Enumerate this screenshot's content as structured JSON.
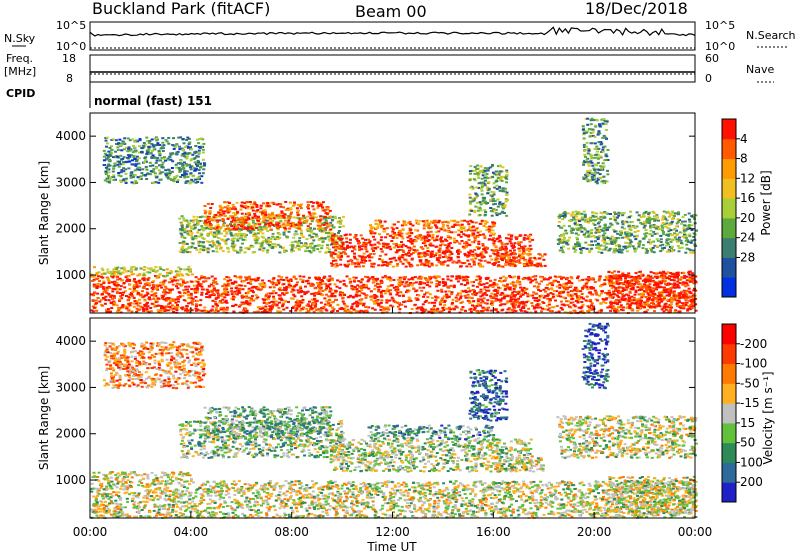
{
  "header": {
    "station": "Buckland Park (fitACF)",
    "beam": "Beam 00",
    "date": "18/Dec/2018"
  },
  "params": {
    "nsky_label": "N.Sky",
    "nsky_top": "10^5",
    "nsky_bottom": "10^0",
    "nsearch_label": "N.Search",
    "nsearch_top": "10^5",
    "nsearch_bottom": "10^0",
    "freq_label": "Freq.",
    "freq_unit": "[MHz]",
    "freq_top": "18",
    "freq_bottom": "8",
    "nave_label": "Nave",
    "nave_top": "60",
    "nave_bottom": "0",
    "cpid_label": "CPID",
    "cpid_value": "normal (fast) 151"
  },
  "chart_data": [
    {
      "type": "heatmap",
      "name": "power",
      "ylabel": "Slant Range [km]",
      "yticks": [
        1000,
        2000,
        3000,
        4000
      ],
      "ylim": [
        180,
        4500
      ],
      "colorbar": {
        "label": "Power [dB]",
        "ticks": [
          "4",
          "8",
          "12",
          "16",
          "20",
          "24",
          "28"
        ],
        "colors": [
          "#0030e0",
          "#2050a0",
          "#3c7f70",
          "#5caa3c",
          "#a8cf3a",
          "#f0c020",
          "#ff9a00",
          "#ff5a00",
          "#ff1000"
        ],
        "range": [
          0,
          31
        ]
      },
      "regions": [
        {
          "t": [
            0,
            24
          ],
          "r": [
            200,
            1000
          ],
          "level": 0.92
        },
        {
          "t": [
            0,
            4
          ],
          "r": [
            1000,
            1200
          ],
          "level": 0.55
        },
        {
          "t": [
            3.5,
            10
          ],
          "r": [
            1500,
            2300
          ],
          "level": 0.45
        },
        {
          "t": [
            4.5,
            9.5
          ],
          "r": [
            2000,
            2600
          ],
          "level": 0.85
        },
        {
          "t": [
            9.5,
            17.5
          ],
          "r": [
            1200,
            1900
          ],
          "level": 0.95
        },
        {
          "t": [
            11,
            16
          ],
          "r": [
            1900,
            2200
          ],
          "level": 0.8
        },
        {
          "t": [
            16,
            18
          ],
          "r": [
            1200,
            1500
          ],
          "level": 0.9
        },
        {
          "t": [
            18.5,
            24
          ],
          "r": [
            1500,
            2400
          ],
          "level": 0.4
        },
        {
          "t": [
            20.5,
            24
          ],
          "r": [
            300,
            1100
          ],
          "level": 0.95
        },
        {
          "t": [
            0.5,
            4.5
          ],
          "r": [
            3000,
            4000
          ],
          "level": 0.3
        },
        {
          "t": [
            15,
            16.5
          ],
          "r": [
            2300,
            3400
          ],
          "level": 0.4
        },
        {
          "t": [
            19.5,
            20.5
          ],
          "r": [
            3000,
            4400
          ],
          "level": 0.35
        }
      ]
    },
    {
      "type": "heatmap",
      "name": "velocity",
      "xlabel": "Time UT",
      "ylabel": "Slant Range [km]",
      "xticks": [
        "00:00",
        "04:00",
        "08:00",
        "12:00",
        "16:00",
        "20:00",
        "00:00"
      ],
      "xlim": [
        0,
        24
      ],
      "yticks": [
        1000,
        2000,
        3000,
        4000
      ],
      "ylim": [
        180,
        4500
      ],
      "colorbar": {
        "label": "Velocity [m s⁻¹]",
        "ticks": [
          "200",
          "100",
          "50",
          "15",
          "-15",
          "-50",
          "-100",
          "-200"
        ],
        "colors": [
          "#2020c8",
          "#2d6b9a",
          "#2e8b57",
          "#63c03a",
          "#c0c0c0",
          "#ffb020",
          "#ff7a00",
          "#ff3a00",
          "#ff0000"
        ],
        "range": [
          -250,
          250
        ]
      },
      "regions": [
        {
          "t": [
            0,
            24
          ],
          "r": [
            200,
            1000
          ],
          "level": 0.5
        },
        {
          "t": [
            0,
            4
          ],
          "r": [
            1000,
            1200
          ],
          "level": 0.55
        },
        {
          "t": [
            3.5,
            10
          ],
          "r": [
            1500,
            2300
          ],
          "level": 0.4
        },
        {
          "t": [
            4.5,
            9.5
          ],
          "r": [
            2000,
            2600
          ],
          "level": 0.35
        },
        {
          "t": [
            9.5,
            17.5
          ],
          "r": [
            1200,
            1900
          ],
          "level": 0.45
        },
        {
          "t": [
            11,
            16
          ],
          "r": [
            1900,
            2200
          ],
          "level": 0.3
        },
        {
          "t": [
            16,
            18
          ],
          "r": [
            1200,
            1500
          ],
          "level": 0.5
        },
        {
          "t": [
            18.5,
            24
          ],
          "r": [
            1500,
            2400
          ],
          "level": 0.5
        },
        {
          "t": [
            20.5,
            24
          ],
          "r": [
            300,
            1100
          ],
          "level": 0.5
        },
        {
          "t": [
            0.5,
            4.5
          ],
          "r": [
            3000,
            4000
          ],
          "level": 0.7
        },
        {
          "t": [
            15,
            16.5
          ],
          "r": [
            2300,
            3400
          ],
          "level": 0.15
        },
        {
          "t": [
            19.5,
            20.5
          ],
          "r": [
            3000,
            4400
          ],
          "level": 0.1
        }
      ]
    }
  ]
}
